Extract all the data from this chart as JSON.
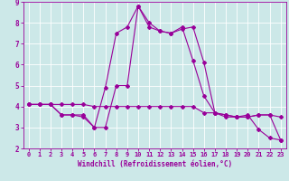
{
  "xlabel": "Windchill (Refroidissement éolien,°C)",
  "bg_color": "#cce8e8",
  "grid_color": "#ffffff",
  "line_color": "#990099",
  "xlim": [
    -0.5,
    23.5
  ],
  "ylim": [
    2,
    9
  ],
  "xticks": [
    0,
    1,
    2,
    3,
    4,
    5,
    6,
    7,
    8,
    9,
    10,
    11,
    12,
    13,
    14,
    15,
    16,
    17,
    18,
    19,
    20,
    21,
    22,
    23
  ],
  "yticks": [
    2,
    3,
    4,
    5,
    6,
    7,
    8,
    9
  ],
  "line1_x": [
    0,
    1,
    2,
    3,
    4,
    5,
    6,
    7,
    8,
    9,
    10,
    11,
    12,
    13,
    14,
    15,
    16,
    17,
    18,
    19,
    20,
    21,
    22,
    23
  ],
  "line1_y": [
    4.1,
    4.1,
    4.1,
    4.1,
    4.1,
    4.1,
    4.0,
    4.0,
    4.0,
    4.0,
    4.0,
    4.0,
    4.0,
    4.0,
    4.0,
    4.0,
    3.7,
    3.7,
    3.5,
    3.5,
    3.5,
    3.6,
    3.6,
    3.5
  ],
  "line2_x": [
    0,
    1,
    2,
    3,
    4,
    5,
    6,
    7,
    8,
    9,
    10,
    11,
    12,
    13,
    14,
    15,
    16,
    17,
    18,
    19,
    20,
    21,
    22,
    23
  ],
  "line2_y": [
    4.1,
    4.1,
    4.1,
    3.6,
    3.6,
    3.6,
    3.0,
    3.0,
    5.0,
    5.0,
    8.8,
    7.8,
    7.6,
    7.5,
    7.8,
    6.2,
    4.5,
    3.7,
    3.6,
    3.5,
    3.6,
    2.9,
    2.5,
    2.4
  ],
  "line3_x": [
    0,
    1,
    2,
    3,
    4,
    5,
    6,
    7,
    8,
    9,
    10,
    11,
    12,
    13,
    14,
    15,
    16,
    17,
    18,
    19,
    20,
    21,
    22,
    23
  ],
  "line3_y": [
    4.1,
    4.1,
    4.1,
    3.6,
    3.6,
    3.5,
    3.0,
    4.9,
    7.5,
    7.8,
    8.8,
    8.0,
    7.6,
    7.5,
    7.7,
    7.8,
    6.1,
    3.7,
    3.6,
    3.5,
    3.5,
    3.6,
    3.6,
    2.4
  ],
  "marker": "D",
  "markersize": 2,
  "linewidth": 0.8,
  "xlabel_fontsize": 5.5,
  "tick_fontsize": 5.0
}
